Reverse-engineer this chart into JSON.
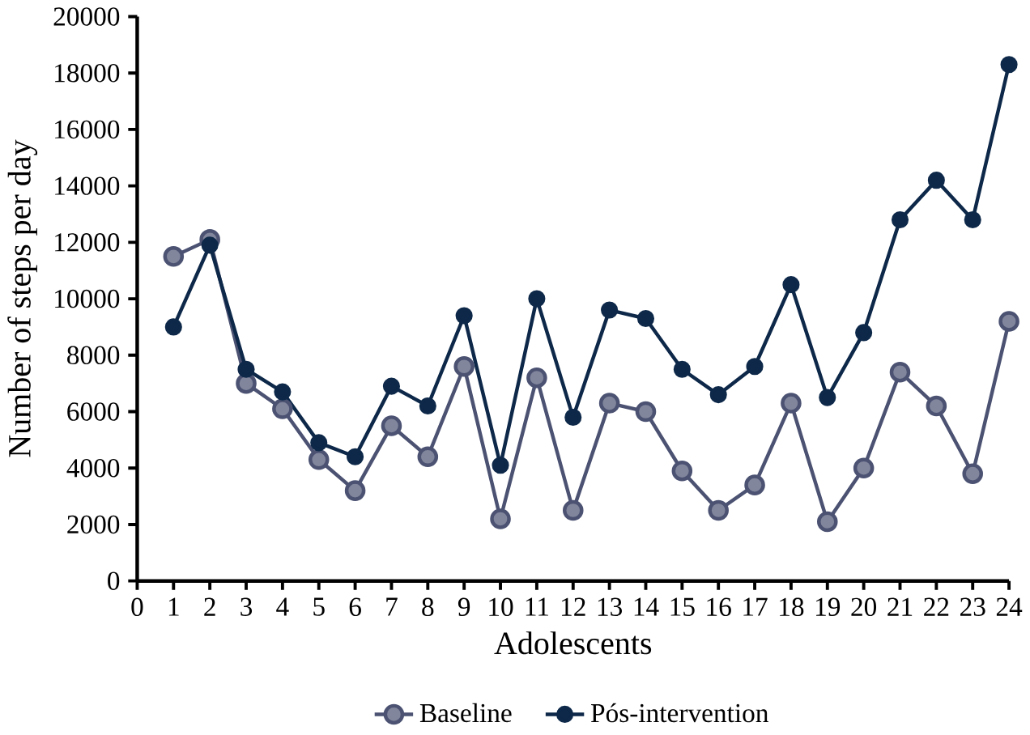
{
  "chart_data": {
    "type": "line",
    "xlabel": "Adolescents",
    "ylabel": "Number of steps per day",
    "x": [
      1,
      2,
      3,
      4,
      5,
      6,
      7,
      8,
      9,
      10,
      11,
      12,
      13,
      14,
      15,
      16,
      17,
      18,
      19,
      20,
      21,
      22,
      23,
      24
    ],
    "series": [
      {
        "name": "Baseline",
        "color": "#4b5272",
        "values": [
          11500,
          12100,
          7000,
          6100,
          4300,
          3200,
          5500,
          4400,
          7600,
          2200,
          7200,
          2500,
          6300,
          6000,
          3900,
          2500,
          3400,
          6300,
          2100,
          4000,
          7400,
          6200,
          3800,
          9200
        ]
      },
      {
        "name": "Pós-intervention",
        "color": "#0d2849",
        "values": [
          9000,
          11900,
          7500,
          6700,
          4900,
          4400,
          6900,
          6200,
          9400,
          4100,
          10000,
          5800,
          9600,
          9300,
          7500,
          6600,
          7600,
          10500,
          6500,
          8800,
          12800,
          14200,
          12800,
          18300
        ]
      }
    ],
    "xlim": [
      0,
      24
    ],
    "xticks": [
      0,
      1,
      2,
      3,
      4,
      5,
      6,
      7,
      8,
      9,
      10,
      11,
      12,
      13,
      14,
      15,
      16,
      17,
      18,
      19,
      20,
      21,
      22,
      23,
      24
    ],
    "ylim": [
      0,
      20000
    ],
    "yticks": [
      0,
      2000,
      4000,
      6000,
      8000,
      10000,
      12000,
      14000,
      16000,
      18000,
      20000
    ],
    "grid": false,
    "legend": "bottom",
    "marker": "circle",
    "line_style": "solid"
  }
}
